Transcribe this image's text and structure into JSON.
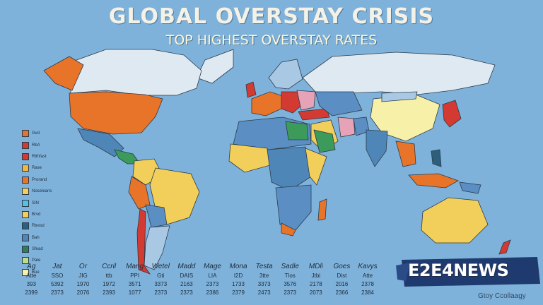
{
  "title": "GLOBAL OVERSTAY CRISIS",
  "subtitle": "TOP HIGHEST OVERSTAY RATES",
  "colors": {
    "ocean": "#7fb2db",
    "orange": "#e8742a",
    "red": "#d33a31",
    "yellow": "#f1cf5a",
    "pale_yellow": "#f7f0a8",
    "blue": "#5b8fc4",
    "light_blue": "#a9c8e4",
    "green": "#3c9a5a",
    "pink": "#e6a3b8",
    "land_light": "#dfe9f1"
  },
  "legend": [
    {
      "label": "Gvd",
      "color": "#e8742a"
    },
    {
      "label": "RbA",
      "color": "#d33a31"
    },
    {
      "label": "Rtthfast",
      "color": "#d33a31"
    },
    {
      "label": "Rase",
      "color": "#f1b640"
    },
    {
      "label": "Prorand",
      "color": "#e8742a"
    },
    {
      "label": "Noseleans",
      "color": "#f1cf5a"
    },
    {
      "label": "SIN",
      "color": "#4fc3e8"
    },
    {
      "label": "Brvd",
      "color": "#f1cf5a"
    },
    {
      "label": "Rtresd",
      "color": "#2c5f7e"
    },
    {
      "label": "Bah",
      "color": "#4f86b8"
    },
    {
      "label": "Sfead",
      "color": "#2e7d5c"
    },
    {
      "label": "Pate",
      "color": "#b6e08a"
    },
    {
      "label": "Bue",
      "color": "#f7f0a8"
    }
  ],
  "table": {
    "headers": [
      "Ag",
      "Jat",
      "Or",
      "Ccril",
      "Mang",
      "Wetel",
      "Madd",
      "Mage",
      "Mona",
      "Testa",
      "Sadle",
      "MDli",
      "Goes",
      "Kavys"
    ],
    "rows": [
      [
        "Atte",
        "SSO",
        "JIG",
        "ttb",
        "PPI",
        "Gti",
        "DAIS",
        "LIA",
        "I2D",
        "3tte",
        "Tlos",
        "Jtbi",
        "Dist",
        "Atte"
      ],
      [
        "393",
        "5392",
        "1970",
        "1972",
        "3571",
        "3373",
        "2163",
        "2373",
        "1733",
        "3373",
        "3576",
        "2178",
        "2016",
        "2378"
      ],
      [
        "2399",
        "2373",
        "2076",
        "2393",
        "1077",
        "2373",
        "2373",
        "2386",
        "2379",
        "2473",
        "2373",
        "2073",
        "2366",
        "2384"
      ]
    ]
  },
  "logo": "E2E4NEWS",
  "credit": "Gtoy Ccollaagy"
}
